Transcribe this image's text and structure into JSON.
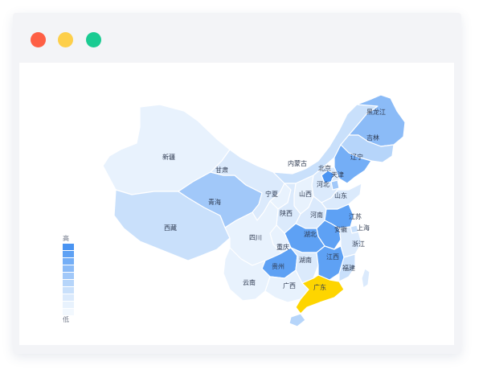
{
  "window": {
    "controls": [
      {
        "name": "close",
        "color": "#fe5f45"
      },
      {
        "name": "minimize",
        "color": "#fdcf4a"
      },
      {
        "name": "zoom",
        "color": "#1acb92"
      }
    ]
  },
  "legend": {
    "high_label": "高",
    "low_label": "低",
    "scale_colors": [
      "#4a94f2",
      "#5ea1f4",
      "#74aef6",
      "#8bbbf7",
      "#a1c8f9",
      "#b6d5fa",
      "#c9e0fb",
      "#dbeafc",
      "#e8f2fd",
      "#f2f8fe"
    ]
  },
  "highlight_color": "#fed500",
  "provinces": [
    {
      "key": "xinjiang",
      "name": "新疆",
      "level": 1
    },
    {
      "key": "xizang",
      "name": "西藏",
      "level": 3
    },
    {
      "key": "qinghai",
      "name": "青海",
      "level": 5
    },
    {
      "key": "gansu",
      "name": "甘肃",
      "level": 2
    },
    {
      "key": "neimenggu",
      "name": "内蒙古",
      "level": 3
    },
    {
      "key": "heilongjiang",
      "name": "黑龙江",
      "level": 6
    },
    {
      "key": "jilin",
      "name": "吉林",
      "level": 4
    },
    {
      "key": "liaoning",
      "name": "辽宁",
      "level": 7
    },
    {
      "key": "beijing",
      "name": "北京",
      "level": 9
    },
    {
      "key": "tianjin",
      "name": "天津",
      "level": 5
    },
    {
      "key": "hebei",
      "name": "河北",
      "level": 2
    },
    {
      "key": "shanxi",
      "name": "山西",
      "level": 1
    },
    {
      "key": "shandong",
      "name": "山东",
      "level": 2
    },
    {
      "key": "ningxia",
      "name": "宁夏",
      "level": 1
    },
    {
      "key": "shaanxi",
      "name": "陕西",
      "level": 2
    },
    {
      "key": "henan",
      "name": "河南",
      "level": 2
    },
    {
      "key": "jiangsu",
      "name": "江苏",
      "level": 8
    },
    {
      "key": "shanghai",
      "name": "上海",
      "level": 3
    },
    {
      "key": "anhui",
      "name": "安徽",
      "level": 8
    },
    {
      "key": "sichuan",
      "name": "四川",
      "level": 1
    },
    {
      "key": "chongqing",
      "name": "重庆",
      "level": 1
    },
    {
      "key": "hubei",
      "name": "湖北",
      "level": 8
    },
    {
      "key": "zhejiang",
      "name": "浙江",
      "level": 2
    },
    {
      "key": "guizhou",
      "name": "贵州",
      "level": 8
    },
    {
      "key": "hunan",
      "name": "湖南",
      "level": 2
    },
    {
      "key": "jiangxi",
      "name": "江西",
      "level": 8
    },
    {
      "key": "fujian",
      "name": "福建",
      "level": 3
    },
    {
      "key": "yunnan",
      "name": "云南",
      "level": 1
    },
    {
      "key": "guangxi",
      "name": "广西",
      "level": 1
    },
    {
      "key": "guangdong",
      "name": "广东",
      "level": "highlight"
    },
    {
      "key": "hainan",
      "name": "",
      "level": 4
    },
    {
      "key": "taiwan",
      "name": "",
      "level": 2
    }
  ]
}
